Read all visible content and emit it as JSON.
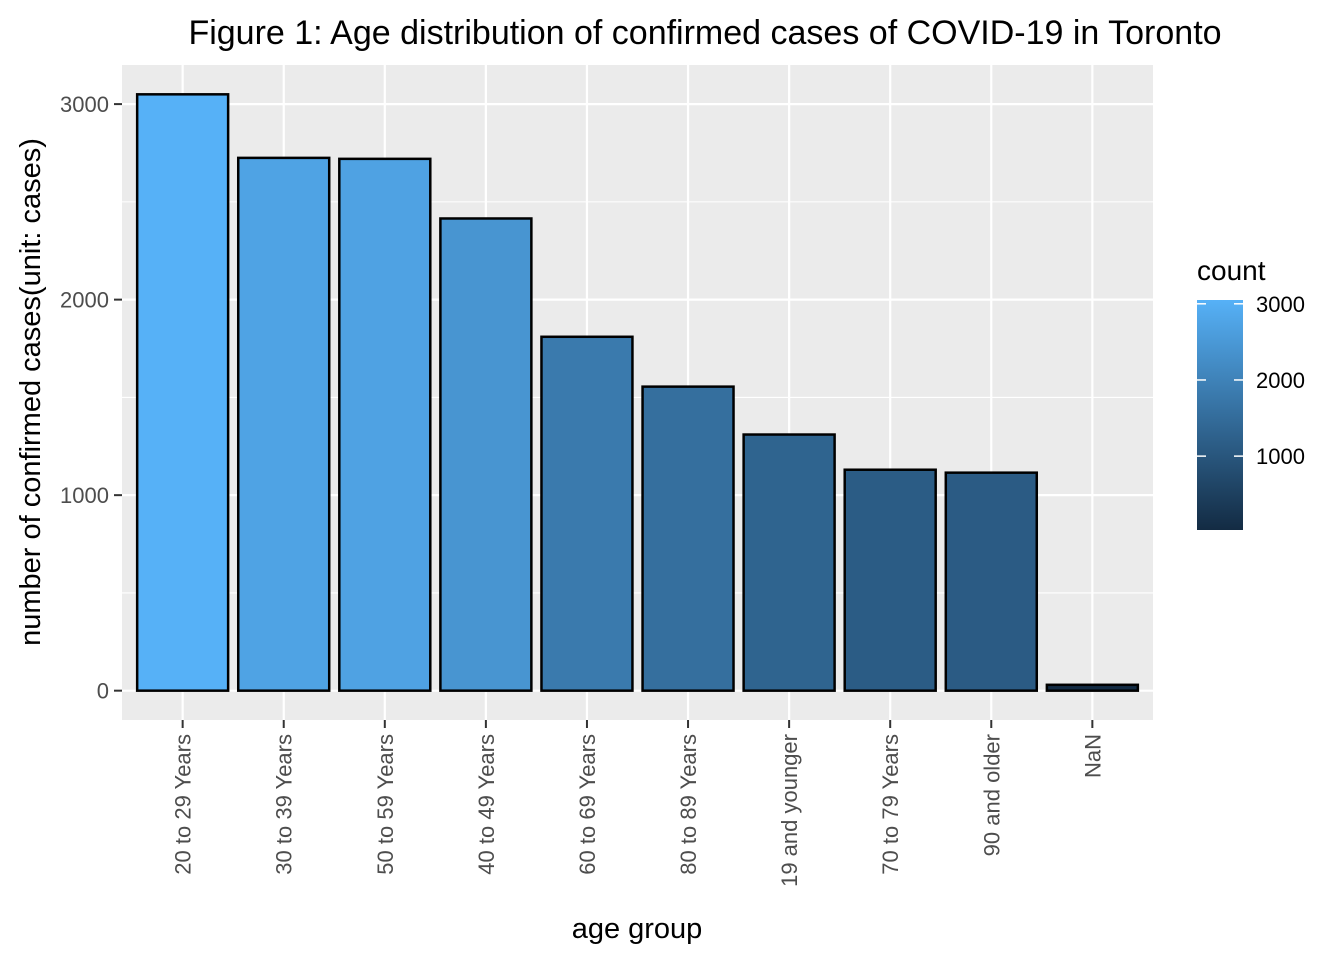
{
  "chart_data": {
    "type": "bar",
    "title": "Figure 1: Age distribution of confirmed cases of COVID-19 in Toronto",
    "xlabel": "age group",
    "ylabel": "number of confirmed cases(unit: cases)",
    "categories": [
      "20 to 29 Years",
      "30 to 39 Years",
      "50 to 59 Years",
      "40 to 49 Years",
      "60 to 69 Years",
      "80 to 89 Years",
      "19 and younger",
      "70 to 79 Years",
      "90 and older",
      "NaN"
    ],
    "values": [
      3050,
      2725,
      2720,
      2415,
      1810,
      1555,
      1310,
      1130,
      1115,
      30
    ],
    "ylim": [
      -150,
      3200
    ],
    "yticks": [
      0,
      1000,
      2000,
      3000
    ],
    "grid": true,
    "legend": {
      "title": "count",
      "position": "right",
      "breaks": [
        1000,
        2000,
        3000
      ],
      "range": [
        30,
        3050
      ]
    },
    "colors": {
      "low": "#132B43",
      "high": "#56B1F7",
      "panel": "#EBEBEB",
      "grid_major": "#FFFFFF",
      "bar_outline": "#000000"
    }
  }
}
